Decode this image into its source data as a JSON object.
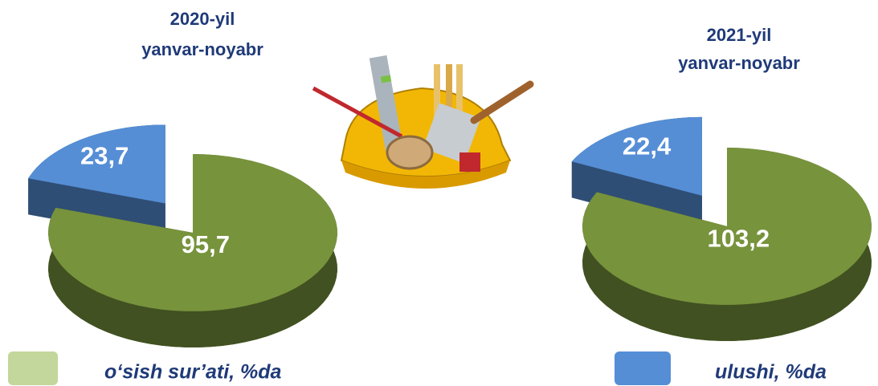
{
  "legend": {
    "items": [
      {
        "label": "o‘sish sur’ati, %da",
        "color": "#77933c"
      },
      {
        "label": "ulushi, %da",
        "color": "#558ed5"
      }
    ]
  },
  "chart_data": [
    {
      "type": "pie",
      "title": "2020-yil",
      "subtitle": "yanvar-noyabr",
      "values": [
        95.7,
        23.7
      ],
      "value_labels": [
        "95,7",
        "23,7"
      ]
    },
    {
      "type": "pie",
      "title": "2021-yil",
      "subtitle": "yanvar-noyabr",
      "values": [
        103.2,
        22.4
      ],
      "value_labels": [
        "103,2",
        "22,4"
      ]
    }
  ]
}
